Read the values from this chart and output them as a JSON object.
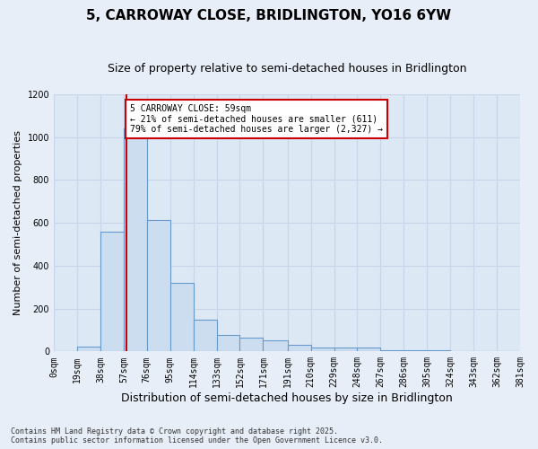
{
  "title": "5, CARROWAY CLOSE, BRIDLINGTON, YO16 6YW",
  "subtitle": "Size of property relative to semi-detached houses in Bridlington",
  "xlabel": "Distribution of semi-detached houses by size in Bridlington",
  "ylabel": "Number of semi-detached properties",
  "footnote": "Contains HM Land Registry data © Crown copyright and database right 2025.\nContains public sector information licensed under the Open Government Licence v3.0.",
  "bin_labels": [
    "0sqm",
    "19sqm",
    "38sqm",
    "57sqm",
    "76sqm",
    "95sqm",
    "114sqm",
    "133sqm",
    "152sqm",
    "171sqm",
    "191sqm",
    "210sqm",
    "229sqm",
    "248sqm",
    "267sqm",
    "286sqm",
    "305sqm",
    "324sqm",
    "343sqm",
    "362sqm",
    "381sqm"
  ],
  "bin_values": [
    0,
    22,
    560,
    1040,
    615,
    320,
    150,
    75,
    65,
    50,
    30,
    20,
    18,
    18,
    5,
    5,
    5,
    0,
    0,
    0
  ],
  "bin_edges": [
    0,
    19,
    38,
    57,
    76,
    95,
    114,
    133,
    152,
    171,
    191,
    210,
    229,
    248,
    267,
    286,
    305,
    324,
    343,
    362,
    381
  ],
  "bar_color": "#ccddf0",
  "bar_edge_color": "#6699cc",
  "vline_x": 59,
  "vline_color": "#cc0000",
  "annotation_text": "5 CARROWAY CLOSE: 59sqm\n← 21% of semi-detached houses are smaller (611)\n79% of semi-detached houses are larger (2,327) →",
  "annotation_box_color": "#cc0000",
  "ylim": [
    0,
    1200
  ],
  "yticks": [
    0,
    200,
    400,
    600,
    800,
    1000,
    1200
  ],
  "xlim": [
    0,
    381
  ],
  "background_color": "#dde8f5",
  "fig_background_color": "#e8eef8",
  "grid_color": "#c8d4e8",
  "title_fontsize": 11,
  "subtitle_fontsize": 9,
  "ylabel_fontsize": 8,
  "xlabel_fontsize": 9,
  "tick_fontsize": 7,
  "annot_fontsize": 7
}
